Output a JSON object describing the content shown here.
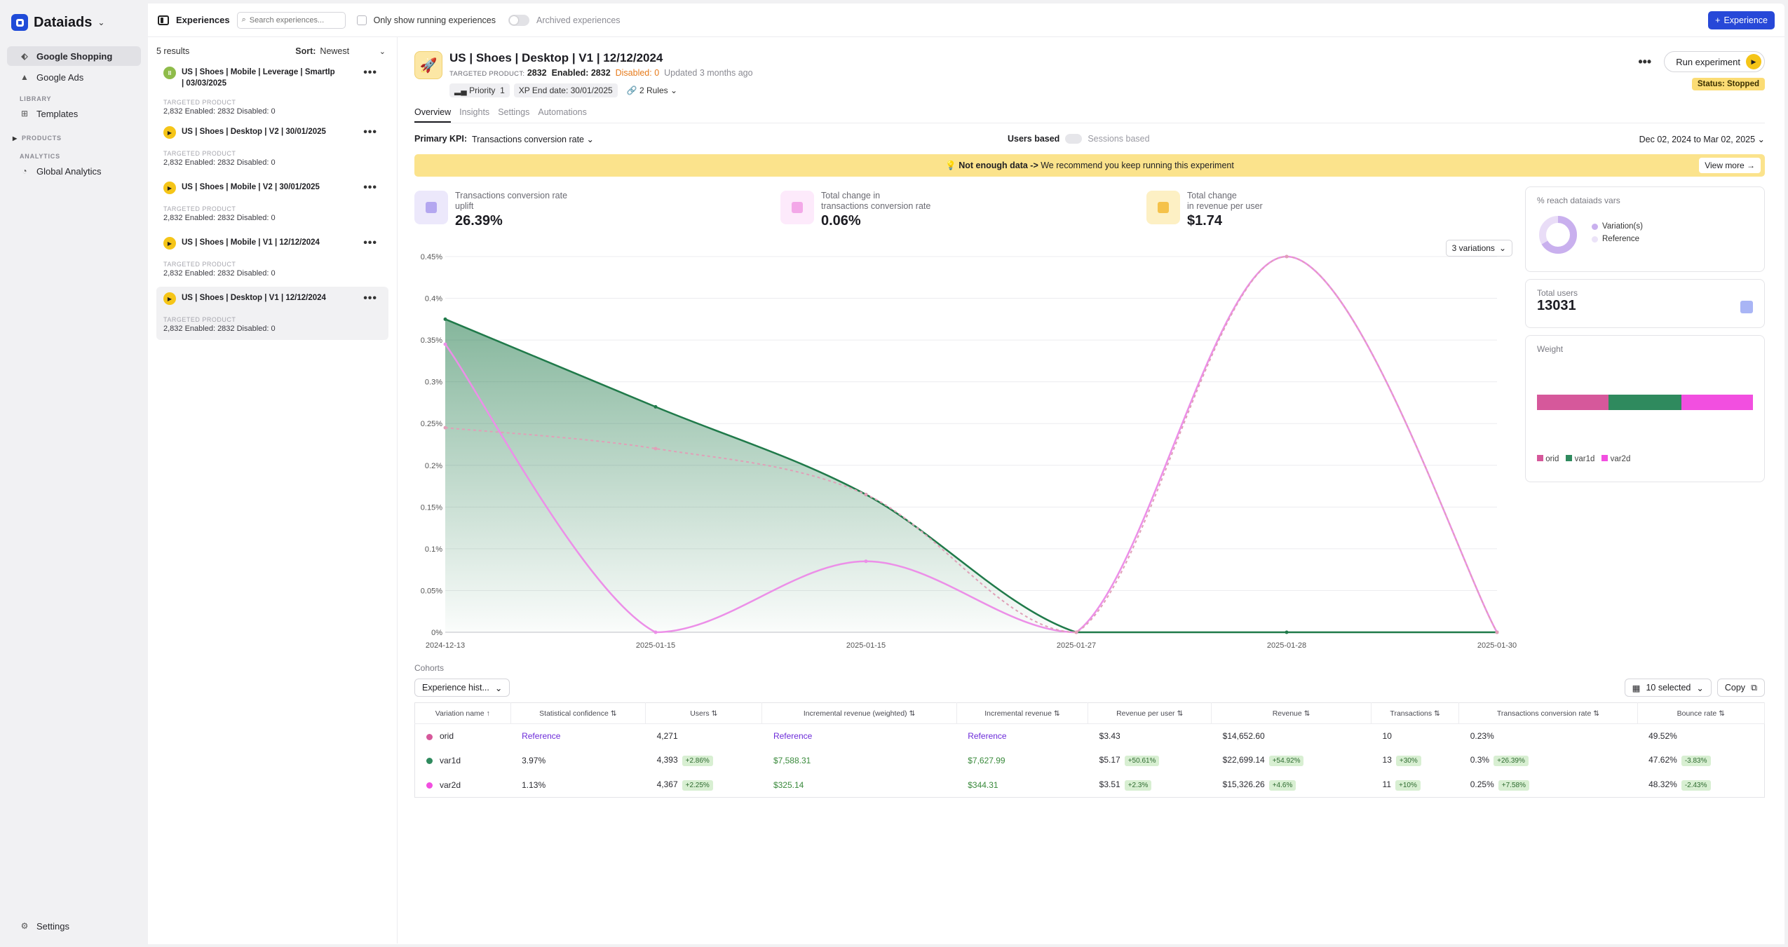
{
  "brand": {
    "name": "Dataiads"
  },
  "nav": {
    "items": [
      {
        "label": "Google Shopping"
      },
      {
        "label": "Google Ads"
      }
    ],
    "library_section": "LIBRARY",
    "templates": "Templates",
    "products_section": "PRODUCTS",
    "analytics_section": "ANALYTICS",
    "global_analytics": "Global Analytics",
    "settings": "Settings"
  },
  "topbar": {
    "title": "Experiences",
    "search_placeholder": "Search experiences...",
    "only_running": "Only show running experiences",
    "archived": "Archived experiences",
    "new_button": "Experience"
  },
  "list": {
    "count": "5 results",
    "sort_label": "Sort:",
    "sort_value": "Newest",
    "items": [
      {
        "title": "US | Shoes | Mobile | Leverage | SmartIp | 03/03/2025",
        "label": "TARGETED PRODUCT",
        "stats": "2,832  Enabled: 2832  Disabled: 0"
      },
      {
        "title": "US | Shoes | Desktop | V2 | 30/01/2025",
        "label": "TARGETED PRODUCT",
        "stats": "2,832  Enabled: 2832  Disabled: 0"
      },
      {
        "title": "US | Shoes | Mobile | V2 | 30/01/2025",
        "label": "TARGETED PRODUCT",
        "stats": "2,832  Enabled: 2832  Disabled: 0"
      },
      {
        "title": "US | Shoes | Mobile | V1 | 12/12/2024",
        "label": "TARGETED PRODUCT",
        "stats": "2,832  Enabled: 2832  Disabled: 0"
      },
      {
        "title": "US | Shoes | Desktop | V1 | 12/12/2024",
        "label": "TARGETED PRODUCT",
        "stats": "2,832  Enabled: 2832  Disabled: 0"
      }
    ]
  },
  "detail": {
    "title": "US | Shoes | Desktop | V1 | 12/12/2024",
    "targeted_label": "TARGETED PRODUCT:",
    "targeted_value": "2832",
    "enabled": "Enabled: 2832",
    "disabled": "Disabled: 0",
    "updated": "Updated 3 months ago",
    "run_button": "Run experiment",
    "status": "Status: Stopped",
    "priority_label": "Priority",
    "priority_value": "1",
    "xp_end": "XP End date: 30/01/2025",
    "rules": "2 Rules",
    "tabs": [
      "Overview",
      "Insights",
      "Settings",
      "Automations"
    ],
    "primary_kpi_label": "Primary KPI:",
    "primary_kpi_value": "Transactions conversion rate",
    "users_based": "Users based",
    "sessions_based": "Sessions based",
    "date_range": "Dec 02, 2024 to Mar 02, 2025",
    "banner_bold": "Not enough data ->",
    "banner_text": "We recommend you keep running this experiment",
    "view_more": "View more →"
  },
  "metrics": [
    {
      "label1": "Transactions conversion rate",
      "label2": "uplift",
      "value": "26.39%",
      "color": "#ece8fb",
      "icon_color": "#b4a7f0"
    },
    {
      "label1": "Total change in",
      "label2": "transactions conversion rate",
      "value": "0.06%",
      "color": "#fdeafb",
      "icon_color": "#f3a8e8"
    },
    {
      "label1": "Total change",
      "label2": "in revenue per user",
      "value": "$1.74",
      "color": "#fdf0c4",
      "icon_color": "#f5c24a"
    }
  ],
  "variations_select": "3 variations",
  "side": {
    "reach_title": "% reach dataiads vars",
    "reach_legend": [
      "Variation(s)",
      "Reference"
    ],
    "total_users_label": "Total users",
    "total_users_value": "13031",
    "weight_title": "Weight",
    "weight_legend": [
      "orid",
      "var1d",
      "var2d"
    ],
    "weight_colors": [
      "#d6589b",
      "#2f8a5e",
      "#f24fe0"
    ],
    "weights": [
      0.33,
      0.34,
      0.33
    ]
  },
  "chart_data": {
    "type": "area",
    "x": [
      "2024-12-13",
      "2025-01-15",
      "2025-01-15",
      "2025-01-27",
      "2025-01-28",
      "2025-01-30"
    ],
    "yticks": [
      "0%",
      "0.05%",
      "0.1%",
      "0.15%",
      "0.2%",
      "0.25%",
      "0.3%",
      "0.35%",
      "0.4%",
      "0.45%"
    ],
    "ylim": [
      0,
      0.45
    ],
    "series": [
      {
        "name": "var1d",
        "values": [
          0.375,
          0.27,
          0.165,
          0.0,
          0.0,
          0.0
        ],
        "color": "#207a4a",
        "fill": true,
        "dashed": false
      },
      {
        "name": "var2d",
        "values": [
          0.345,
          0.0,
          0.085,
          0.0,
          0.45,
          0.0
        ],
        "color": "#ec8fe8",
        "fill": false,
        "dashed": false
      },
      {
        "name": "orid",
        "values": [
          0.245,
          0.22,
          0.165,
          0.0,
          0.45,
          0.0
        ],
        "color": "#e0a0b8",
        "fill": false,
        "dashed": true
      }
    ]
  },
  "cohorts": {
    "title": "Cohorts",
    "history_button": "Experience hist...",
    "selected": "10 selected",
    "copy": "Copy",
    "columns": [
      "Variation name ↑",
      "Statistical confidence ⇅",
      "Users ⇅",
      "Incremental revenue (weighted) ⇅",
      "Incremental revenue ⇅",
      "Revenue per user ⇅",
      "Revenue ⇅",
      "Transactions ⇅",
      "Transactions conversion rate ⇅",
      "Bounce rate ⇅"
    ],
    "rows": [
      {
        "name": "orid",
        "color": "#d6589b",
        "conf": "Reference",
        "users": "4,271",
        "users_d": "",
        "inc_w": "Reference",
        "inc": "Reference",
        "rpu": "$3.43",
        "rpu_d": "",
        "rev": "$14,652.60",
        "rev_d": "",
        "tx": "10",
        "tx_d": "",
        "tcr": "0.23%",
        "tcr_d": "",
        "br": "49.52%",
        "br_d": ""
      },
      {
        "name": "var1d",
        "color": "#2f8a5e",
        "conf": "3.97%",
        "users": "4,393",
        "users_d": "+2.86%",
        "inc_w": "$7,588.31",
        "inc": "$7,627.99",
        "rpu": "$5.17",
        "rpu_d": "+50.61%",
        "rev": "$22,699.14",
        "rev_d": "+54.92%",
        "tx": "13",
        "tx_d": "+30%",
        "tcr": "0.3%",
        "tcr_d": "+26.39%",
        "br": "47.62%",
        "br_d": "-3.83%"
      },
      {
        "name": "var2d",
        "color": "#f24fe0",
        "conf": "1.13%",
        "users": "4,367",
        "users_d": "+2.25%",
        "inc_w": "$325.14",
        "inc": "$344.31",
        "rpu": "$3.51",
        "rpu_d": "+2.3%",
        "rev": "$15,326.26",
        "rev_d": "+4.6%",
        "tx": "11",
        "tx_d": "+10%",
        "tcr": "0.25%",
        "tcr_d": "+7.58%",
        "br": "48.32%",
        "br_d": "-2.43%"
      }
    ]
  }
}
